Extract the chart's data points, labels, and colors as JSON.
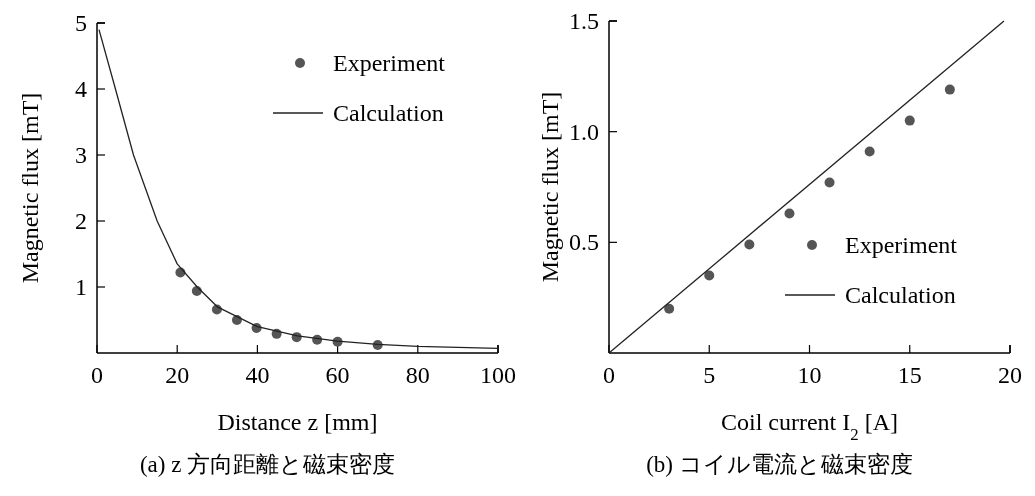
{
  "chart_data": [
    {
      "type": "scatter",
      "title": "(a) z 方向距離と磁束密度",
      "xlabel": "Distance z [mm]",
      "ylabel": "Magnetic flux [mT]",
      "xlim": [
        0,
        100
      ],
      "xticks": [
        0,
        20,
        40,
        60,
        80,
        100
      ],
      "ylim": [
        0,
        5
      ],
      "yticks": [
        1,
        2,
        3,
        4,
        5
      ],
      "grid": false,
      "legend": "top right",
      "series": [
        {
          "name": "Experiment",
          "marker": "circle",
          "color": "#555555",
          "x": [
            20.8,
            24.9,
            29.9,
            34.9,
            39.8,
            44.8,
            49.8,
            54.9,
            60,
            70
          ],
          "values": [
            1.22,
            0.94,
            0.66,
            0.5,
            0.38,
            0.29,
            0.24,
            0.2,
            0.17,
            0.12
          ]
        },
        {
          "name": "Calculation",
          "type": "line",
          "line_style": "solid",
          "color": "#222222",
          "x": [
            0.5,
            4.6,
            9.1,
            15,
            20,
            25,
            30,
            40,
            50,
            60,
            70,
            80,
            100
          ],
          "values": [
            4.9,
            4,
            3,
            2,
            1.35,
            1.0,
            0.7,
            0.4,
            0.26,
            0.18,
            0.13,
            0.1,
            0.07
          ]
        }
      ]
    },
    {
      "type": "scatter",
      "title": "(b) コイル電流と磁束密度",
      "xlabel": "Coil current I$_{2}$ [A]",
      "ylabel": "Magnetic flux [mT]",
      "xlim": [
        0,
        20
      ],
      "xticks": [
        0,
        5,
        10,
        15,
        20
      ],
      "ylim": [
        0,
        1.5
      ],
      "yticks": [
        {
          "value": 0.5,
          "label": "0.5"
        },
        {
          "value": 1,
          "label": "1.0"
        },
        {
          "value": 1.5,
          "label": "1.5"
        }
      ],
      "grid": false,
      "legend": "bottom right",
      "series": [
        {
          "name": "Experiment",
          "marker": "circle",
          "color": "#555555",
          "x": [
            3,
            5,
            7,
            9,
            11,
            13,
            15,
            17
          ],
          "values": [
            0.2,
            0.35,
            0.49,
            0.63,
            0.77,
            0.91,
            1.05,
            1.19
          ]
        },
        {
          "name": "Calculation",
          "type": "line",
          "line_style": "solid",
          "color": "#222222",
          "x": [
            0,
            19.7
          ],
          "values": [
            0,
            1.5
          ]
        }
      ]
    }
  ]
}
